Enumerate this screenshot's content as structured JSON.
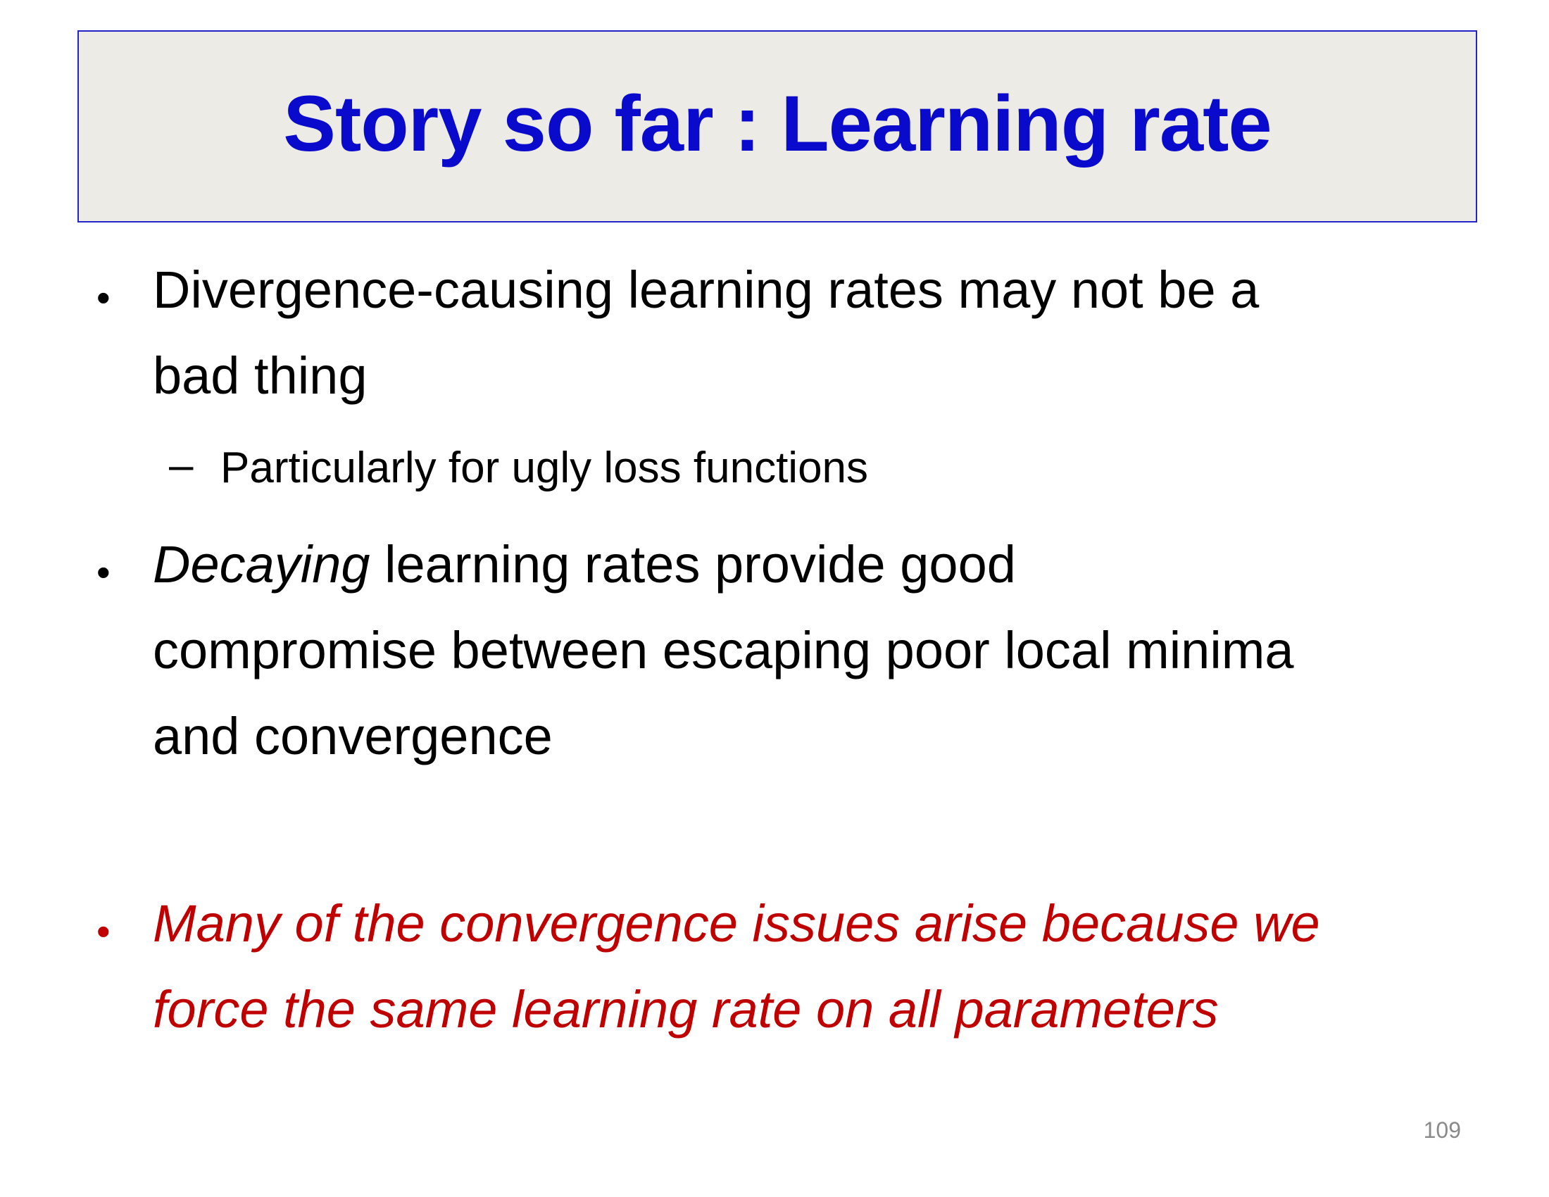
{
  "slide": {
    "title": "Story so far : Learning rate",
    "bullets": [
      {
        "lines": [
          "Divergence-causing learning rates may not be a",
          "bad thing"
        ],
        "sub": [
          "Particularly for ugly loss functions"
        ]
      },
      {
        "emphasis": "Decaying",
        "line1_rest": " learning rates provide good",
        "lines": [
          "compromise between escaping poor local minima",
          "and convergence"
        ]
      },
      {
        "lines": [
          "Many of the convergence issues arise because we",
          "force the same learning rate on all parameters"
        ]
      }
    ],
    "bullet_symbol": "•",
    "dash_symbol": "–",
    "page_number": "109"
  },
  "colors": {
    "title": "#0a0acc",
    "title_background": "#ecebe5",
    "title_border": "#2323c8",
    "highlight": "#c00000"
  }
}
